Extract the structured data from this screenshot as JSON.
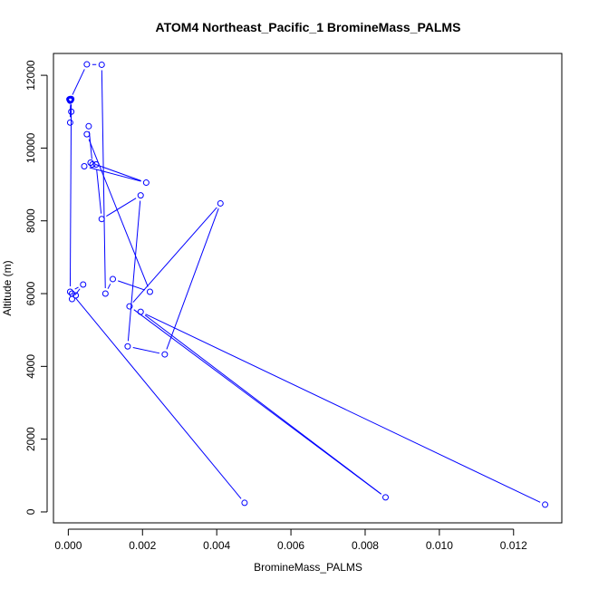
{
  "chart_data": {
    "type": "line",
    "title": "ATOM4 Northeast_Pacific_1 BromineMass_PALMS",
    "xlabel": "BromineMass_PALMS",
    "ylabel": "Altitude (m)",
    "xlim": [
      -0.0004,
      0.0133
    ],
    "ylim": [
      -300,
      12600
    ],
    "x_ticks": [
      0.0,
      0.002,
      0.004,
      0.006,
      0.008,
      0.01,
      0.012
    ],
    "x_tick_labels": [
      "0.000",
      "0.002",
      "0.004",
      "0.006",
      "0.008",
      "0.010",
      "0.012"
    ],
    "y_ticks": [
      0,
      2000,
      4000,
      6000,
      8000,
      10000,
      12000
    ],
    "y_tick_labels": [
      "0",
      "2000",
      "4000",
      "6000",
      "8000",
      "10000",
      "12000"
    ],
    "grid": false,
    "colors": {
      "series": "#0000ff",
      "axis": "#000000",
      "background": "#ffffff"
    },
    "series": [
      {
        "x": [
          0.00475,
          0.0001,
          0.0002,
          0.0001,
          0.0004,
          5e-05,
          8e-05,
          6e-05,
          5e-05,
          8e-05,
          5e-05,
          5e-05,
          3e-05,
          7e-05,
          5e-05,
          0.0005,
          0.0009,
          0.001,
          0.0012,
          0.0022,
          0.0005,
          0.00055,
          0.00065,
          0.00043,
          0.0021,
          0.0006,
          0.00075,
          0.0009,
          0.00195,
          0.0016,
          0.0026,
          0.0041,
          0.00165,
          0.00855,
          0.00195,
          0.01285
        ],
        "y": [
          250,
          6000,
          5950,
          5850,
          6250,
          6050,
          11350,
          11320,
          10700,
          11000,
          11350,
          11300,
          11340,
          11320,
          11330,
          12300,
          12290,
          6000,
          6400,
          6050,
          10380,
          10600,
          9550,
          9500,
          9050,
          9600,
          9550,
          8050,
          8700,
          4550,
          4330,
          8480,
          5650,
          400,
          5500,
          200
        ]
      }
    ]
  }
}
